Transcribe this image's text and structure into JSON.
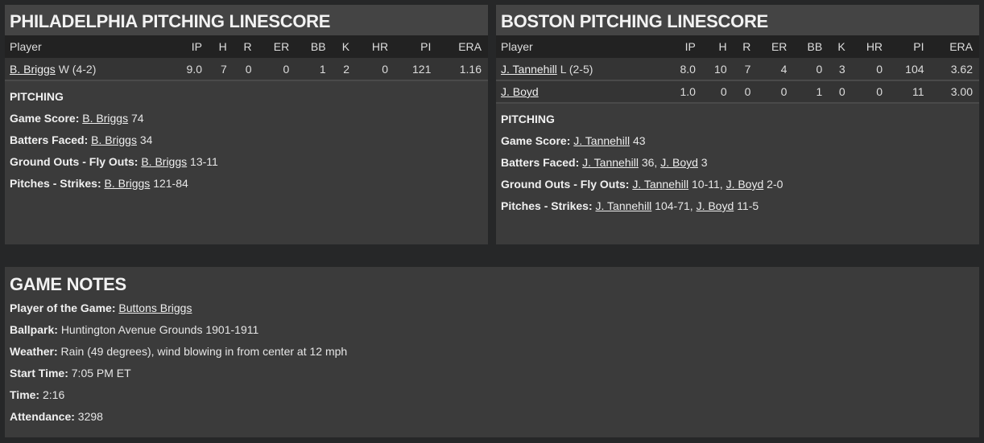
{
  "phi": {
    "title": "PHILADELPHIA PITCHING LINESCORE",
    "columns": [
      "Player",
      "IP",
      "H",
      "R",
      "ER",
      "BB",
      "K",
      "HR",
      "PI",
      "ERA"
    ],
    "rows": [
      {
        "name": "B. Briggs",
        "dec": "W (4-2)",
        "stats": [
          "9.0",
          "7",
          "0",
          "0",
          "1",
          "2",
          "0",
          "121",
          "1.16"
        ]
      }
    ],
    "section": "PITCHING",
    "notes": [
      {
        "label": "Game Score:",
        "items": [
          {
            "name": "B. Briggs",
            "val": " 74"
          }
        ]
      },
      {
        "label": "Batters Faced:",
        "items": [
          {
            "name": "B. Briggs",
            "val": " 34"
          }
        ]
      },
      {
        "label": "Ground Outs - Fly Outs:",
        "items": [
          {
            "name": "B. Briggs",
            "val": " 13-11"
          }
        ]
      },
      {
        "label": "Pitches - Strikes:",
        "items": [
          {
            "name": "B. Briggs",
            "val": " 121-84"
          }
        ]
      }
    ]
  },
  "bos": {
    "title": "BOSTON PITCHING LINESCORE",
    "columns": [
      "Player",
      "IP",
      "H",
      "R",
      "ER",
      "BB",
      "K",
      "HR",
      "PI",
      "ERA"
    ],
    "rows": [
      {
        "name": "J. Tannehill",
        "dec": "L (2-5)",
        "stats": [
          "8.0",
          "10",
          "7",
          "4",
          "0",
          "3",
          "0",
          "104",
          "3.62"
        ]
      },
      {
        "name": "J. Boyd",
        "dec": "",
        "stats": [
          "1.0",
          "0",
          "0",
          "0",
          "1",
          "0",
          "0",
          "11",
          "3.00"
        ]
      }
    ],
    "section": "PITCHING",
    "notes": [
      {
        "label": "Game Score:",
        "items": [
          {
            "name": "J. Tannehill",
            "val": " 43"
          }
        ]
      },
      {
        "label": "Batters Faced:",
        "items": [
          {
            "name": "J. Tannehill",
            "val": " 36, "
          },
          {
            "name": "J. Boyd",
            "val": " 3"
          }
        ]
      },
      {
        "label": "Ground Outs - Fly Outs:",
        "items": [
          {
            "name": "J. Tannehill",
            "val": " 10-11, "
          },
          {
            "name": "J. Boyd",
            "val": " 2-0"
          }
        ]
      },
      {
        "label": "Pitches - Strikes:",
        "items": [
          {
            "name": "J. Tannehill",
            "val": " 104-71, "
          },
          {
            "name": "J. Boyd",
            "val": " 11-5"
          }
        ]
      }
    ]
  },
  "game": {
    "title": "GAME NOTES",
    "notes": [
      {
        "label": "Player of the Game:",
        "link": "Buttons Briggs",
        "val": ""
      },
      {
        "label": "Ballpark:",
        "val": "Huntington Avenue Grounds 1901-1911"
      },
      {
        "label": "Weather:",
        "val": "Rain (49 degrees), wind blowing in from center at 12 mph"
      },
      {
        "label": "Start Time:",
        "val": "7:05 PM ET"
      },
      {
        "label": "Time:",
        "val": "2:16"
      },
      {
        "label": "Attendance:",
        "val": "3298"
      }
    ]
  }
}
